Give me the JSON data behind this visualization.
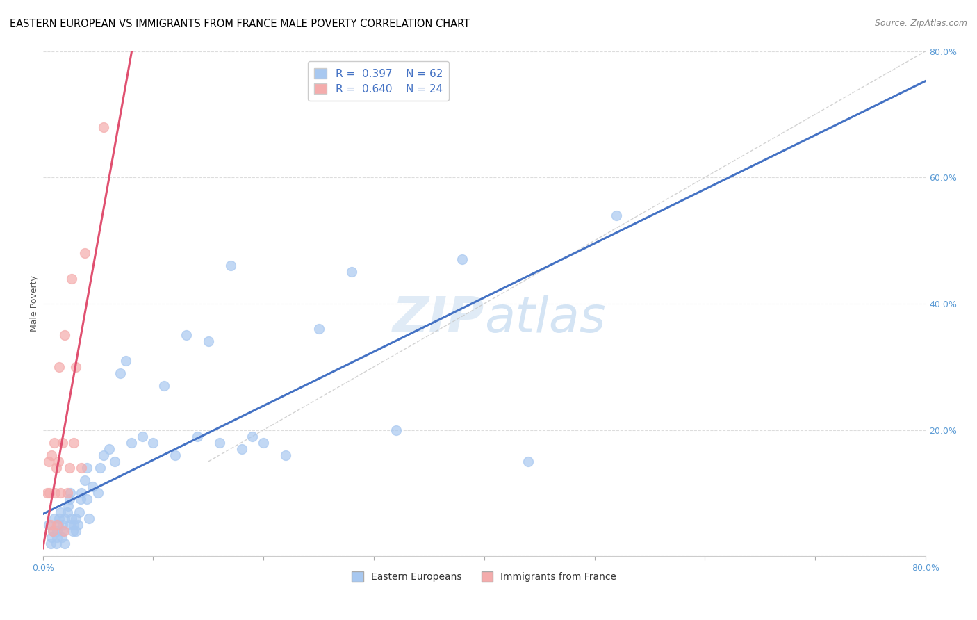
{
  "title": "EASTERN EUROPEAN VS IMMIGRANTS FROM FRANCE MALE POVERTY CORRELATION CHART",
  "source": "Source: ZipAtlas.com",
  "ylabel": "Male Poverty",
  "xlim": [
    0,
    0.8
  ],
  "ylim": [
    0,
    0.8
  ],
  "background_color": "#ffffff",
  "grid_color": "#dddddd",
  "watermark": "ZIPatlas",
  "legend_R1": "0.397",
  "legend_N1": "62",
  "legend_R2": "0.640",
  "legend_N2": "24",
  "color_eastern": "#A8C8F0",
  "color_france": "#F4ACAC",
  "color_line_eastern": "#4472C4",
  "color_line_france": "#E05070",
  "color_line_diag": "#C8C8C8",
  "tick_color": "#5B9BD5",
  "eastern_x": [
    0.005,
    0.007,
    0.008,
    0.009,
    0.01,
    0.012,
    0.013,
    0.013,
    0.014,
    0.015,
    0.016,
    0.017,
    0.018,
    0.018,
    0.02,
    0.02,
    0.022,
    0.023,
    0.024,
    0.025,
    0.025,
    0.026,
    0.027,
    0.028,
    0.03,
    0.03,
    0.032,
    0.033,
    0.034,
    0.035,
    0.038,
    0.04,
    0.04,
    0.042,
    0.045,
    0.05,
    0.052,
    0.055,
    0.06,
    0.065,
    0.07,
    0.075,
    0.08,
    0.09,
    0.1,
    0.11,
    0.12,
    0.13,
    0.14,
    0.15,
    0.16,
    0.17,
    0.18,
    0.19,
    0.2,
    0.22,
    0.25,
    0.28,
    0.32,
    0.38,
    0.44,
    0.52
  ],
  "eastern_y": [
    0.05,
    0.02,
    0.03,
    0.04,
    0.06,
    0.02,
    0.03,
    0.04,
    0.05,
    0.06,
    0.07,
    0.03,
    0.04,
    0.05,
    0.02,
    0.06,
    0.07,
    0.08,
    0.09,
    0.05,
    0.1,
    0.06,
    0.04,
    0.05,
    0.04,
    0.06,
    0.05,
    0.07,
    0.09,
    0.1,
    0.12,
    0.09,
    0.14,
    0.06,
    0.11,
    0.1,
    0.14,
    0.16,
    0.17,
    0.15,
    0.29,
    0.31,
    0.18,
    0.19,
    0.18,
    0.27,
    0.16,
    0.35,
    0.19,
    0.34,
    0.18,
    0.46,
    0.17,
    0.19,
    0.18,
    0.16,
    0.36,
    0.45,
    0.2,
    0.47,
    0.15,
    0.54
  ],
  "france_x": [
    0.004,
    0.005,
    0.006,
    0.007,
    0.008,
    0.009,
    0.01,
    0.011,
    0.012,
    0.013,
    0.014,
    0.015,
    0.016,
    0.018,
    0.019,
    0.02,
    0.022,
    0.024,
    0.026,
    0.028,
    0.03,
    0.035,
    0.038,
    0.055
  ],
  "france_y": [
    0.1,
    0.15,
    0.1,
    0.05,
    0.16,
    0.04,
    0.18,
    0.1,
    0.14,
    0.05,
    0.15,
    0.3,
    0.1,
    0.18,
    0.04,
    0.35,
    0.1,
    0.14,
    0.44,
    0.18,
    0.3,
    0.14,
    0.48,
    0.68
  ],
  "title_fontsize": 10.5,
  "axis_label_fontsize": 9,
  "tick_fontsize": 9,
  "legend_fontsize": 11,
  "source_fontsize": 9,
  "marker_size": 10
}
